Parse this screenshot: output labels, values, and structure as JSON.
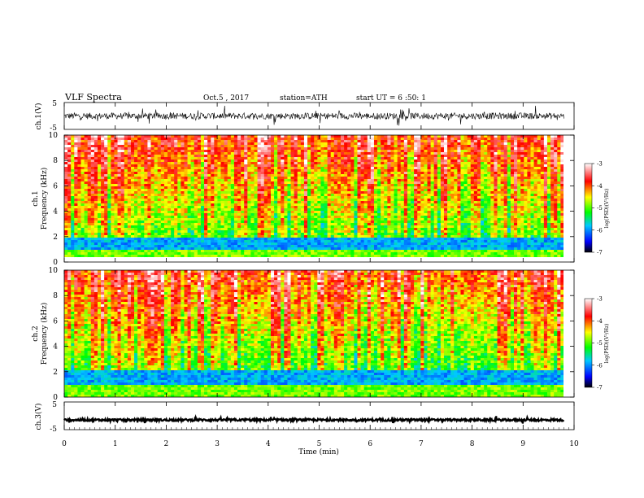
{
  "header": {
    "title": "VLF Spectra",
    "date": "Oct.5 , 2017",
    "station": "station=ATH",
    "start": "start UT = 6 :50: 1"
  },
  "chart_data": [
    {
      "type": "line",
      "panel": "ch1-waveform",
      "ylabel": "ch.1(V)",
      "yticks": [
        "5",
        "-5"
      ],
      "ylim": [
        -5,
        5
      ],
      "x_range_min": [
        0,
        9.8
      ],
      "description_values": {
        "baseline": 0,
        "typical_amplitude": 1.2
      }
    },
    {
      "type": "heatmap",
      "panel": "ch1-spectrogram",
      "ylabel_line1": "ch.1",
      "ylabel_line2": "Frequency (kHz)",
      "yticks": [
        "10",
        "8",
        "6",
        "4",
        "2",
        "0"
      ],
      "ylim_khz": [
        0,
        10
      ],
      "xlim_min": [
        0,
        10
      ],
      "data_end_min": 9.8,
      "colorbar": {
        "label": "log(PSD)(V²/Hz)",
        "ticks": [
          "-3",
          "-4",
          "-5",
          "-6",
          "-7"
        ],
        "range": [
          -7,
          -3
        ],
        "colors": [
          "#000000",
          "#0000ff",
          "#00c8ff",
          "#00ff00",
          "#ffff00",
          "#ff0000",
          "#ffffff"
        ]
      },
      "features": {
        "low_band_khz": [
          0.9,
          2.0
        ],
        "gap_khz": [
          0,
          0.4
        ]
      }
    },
    {
      "type": "heatmap",
      "panel": "ch2-spectrogram",
      "ylabel_line1": "ch.2",
      "ylabel_line2": "Frequency (kHz)",
      "yticks": [
        "10",
        "8",
        "6",
        "4",
        "2",
        "0"
      ],
      "ylim_khz": [
        0,
        10
      ],
      "xlim_min": [
        0,
        10
      ],
      "data_end_min": 9.8,
      "colorbar": {
        "label": "log(PSD)(V²/Hz)",
        "ticks": [
          "-3",
          "-4",
          "-5",
          "-6",
          "-7"
        ],
        "range": [
          -7,
          -3
        ],
        "colors": [
          "#000000",
          "#0000ff",
          "#00c8ff",
          "#00ff00",
          "#ffff00",
          "#ff0000",
          "#ffffff"
        ]
      },
      "features": {
        "low_band_khz": [
          0.9,
          2.2
        ]
      }
    },
    {
      "type": "line",
      "panel": "ch3-waveform",
      "ylabel": "ch.3(V)",
      "yticks": [
        "5",
        "-5"
      ],
      "ylim": [
        -5,
        5
      ],
      "xlabel": "Time (min)",
      "xticks": [
        "0",
        "1",
        "2",
        "3",
        "4",
        "5",
        "6",
        "7",
        "8",
        "9",
        "10"
      ],
      "xlim": [
        0,
        10
      ],
      "description_values": {
        "baseline": -1.5,
        "typical_amplitude": 0.4
      }
    }
  ]
}
